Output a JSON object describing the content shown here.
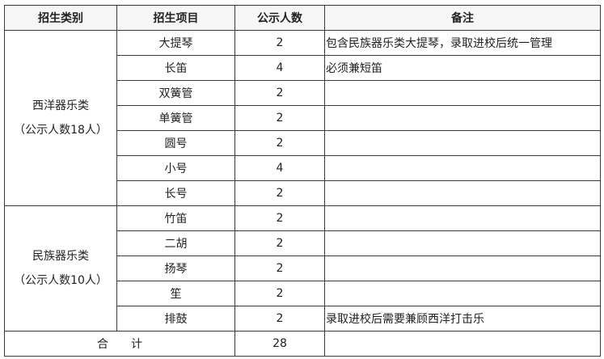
{
  "headers": [
    "招生类别",
    "招生项目",
    "公示人数",
    "备注"
  ],
  "groups": [
    {
      "name": "西洋器乐类",
      "subtitle": "（公示人数18人）",
      "rows": [
        {
          "item": "大提琴",
          "count": "2",
          "note": "包含民族器乐类大提琴，录取进校后统一管理"
        },
        {
          "item": "长笛",
          "count": "4",
          "note": "必须兼短笛"
        },
        {
          "item": "双簧管",
          "count": "2",
          "note": ""
        },
        {
          "item": "单簧管",
          "count": "2",
          "note": ""
        },
        {
          "item": "圆号",
          "count": "2",
          "note": ""
        },
        {
          "item": "小号",
          "count": "4",
          "note": ""
        },
        {
          "item": "长号",
          "count": "2",
          "note": ""
        }
      ]
    },
    {
      "name": "民族器乐类",
      "subtitle": "（公示人数10人）",
      "rows": [
        {
          "item": "竹笛",
          "count": "2",
          "note": ""
        },
        {
          "item": "二胡",
          "count": "2",
          "note": ""
        },
        {
          "item": "扬琴",
          "count": "2",
          "note": ""
        },
        {
          "item": "笙",
          "count": "2",
          "note": ""
        },
        {
          "item": "排鼓",
          "count": "2",
          "note": "录取进校后需要兼顾西洋打击乐"
        }
      ]
    }
  ],
  "total": {
    "label": "合　　计",
    "count": "28",
    "note": ""
  }
}
